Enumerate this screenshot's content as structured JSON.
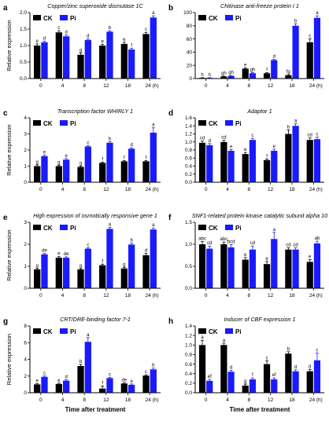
{
  "legend": {
    "ck": "CK",
    "pi": "Pi"
  },
  "colors": {
    "ck": "#000000",
    "pi": "#1a1aff"
  },
  "chart_data": [
    {
      "label": "a",
      "title": "Copper/zinc superoxide dismutase 1C",
      "type": "bar",
      "categories": [
        "0",
        "4",
        "8",
        "12",
        "18",
        "24 (h)"
      ],
      "ylabel": "Relative expression",
      "xlabel": "",
      "ylim": [
        0,
        2.0
      ],
      "yticks": [
        "0.0",
        "0.5",
        "1.0",
        "1.5",
        "2.0"
      ],
      "series": [
        {
          "name": "CK",
          "values": [
            1.0,
            1.4,
            0.72,
            1.0,
            1.05,
            1.35
          ],
          "err": [
            0.05,
            0.05,
            0.05,
            0.04,
            0.05,
            0.05
          ],
          "sig": [
            "e",
            "c",
            "g",
            "e",
            "e",
            "c"
          ]
        },
        {
          "name": "Pi",
          "values": [
            1.1,
            1.28,
            1.17,
            1.42,
            0.88,
            1.85
          ],
          "err": [
            0.03,
            0.04,
            0.03,
            0.03,
            0.04,
            0.05
          ],
          "sig": [
            "d",
            "d",
            "d",
            "b",
            "f",
            "a"
          ]
        }
      ]
    },
    {
      "label": "b",
      "title": "Chitinase anti-freeze protein I 1",
      "type": "bar",
      "categories": [
        "0",
        "4",
        "8",
        "12",
        "18",
        "24 (h)"
      ],
      "ylabel": "",
      "xlabel": "",
      "ylim": [
        0,
        100
      ],
      "yticks": [
        "0",
        "20",
        "40",
        "60",
        "80",
        "100"
      ],
      "series": [
        {
          "name": "CK",
          "values": [
            1,
            3,
            15,
            8,
            5,
            55
          ],
          "err": [
            0.3,
            0.5,
            1,
            1,
            1,
            5
          ],
          "sig": [
            "h",
            "gh",
            "e",
            "f",
            "fg",
            "c"
          ]
        },
        {
          "name": "Pi",
          "values": [
            1,
            4,
            8,
            28,
            80,
            92
          ],
          "err": [
            0.3,
            0.5,
            1,
            1,
            3,
            3
          ],
          "sig": [
            "h",
            "gh",
            "gh",
            "d",
            "b",
            "a"
          ]
        }
      ]
    },
    {
      "label": "c",
      "title": "Transcription factor WHIRLY 1",
      "type": "bar",
      "categories": [
        "0",
        "4",
        "8",
        "12",
        "18",
        "24 (h)"
      ],
      "ylabel": "Relative expression",
      "xlabel": "",
      "ylim": [
        0,
        4
      ],
      "yticks": [
        "0",
        "1",
        "2",
        "3",
        "4"
      ],
      "series": [
        {
          "name": "CK",
          "values": [
            1.0,
            1.0,
            0.95,
            1.2,
            1.3,
            1.3
          ],
          "err": [
            0.08,
            0.06,
            0.05,
            0.05,
            0.05,
            0.05
          ],
          "sig": [
            "g",
            "g",
            "g",
            "f",
            "f",
            "f"
          ]
        },
        {
          "name": "Pi",
          "values": [
            1.62,
            1.4,
            2.22,
            2.45,
            2.08,
            3.08
          ],
          "err": [
            0.06,
            0.07,
            0.05,
            0.06,
            0.06,
            0.3
          ],
          "sig": [
            "e",
            "e",
            "c",
            "b",
            "d",
            "a"
          ]
        }
      ]
    },
    {
      "label": "d",
      "title": "Adaptor 1",
      "type": "bar",
      "categories": [
        "0",
        "4",
        "8",
        "12",
        "18",
        "24 (h)"
      ],
      "ylabel": "",
      "xlabel": "",
      "ylim": [
        0,
        1.6
      ],
      "yticks": [
        "0.0",
        "0.2",
        "0.4",
        "0.6",
        "0.8",
        "1.0",
        "1.2",
        "1.4",
        "1.6"
      ],
      "series": [
        {
          "name": "CK",
          "values": [
            0.98,
            1.0,
            0.7,
            0.55,
            1.2,
            1.05
          ],
          "err": [
            0.04,
            0.04,
            0.04,
            0.03,
            0.1,
            0.05
          ],
          "sig": [
            "cd",
            "cd",
            "e",
            "f",
            "b",
            "cd"
          ]
        },
        {
          "name": "Pi",
          "values": [
            0.92,
            0.78,
            1.05,
            0.78,
            1.4,
            1.07
          ],
          "err": [
            0.04,
            0.03,
            0.04,
            0.04,
            0.05,
            0.05
          ],
          "sig": [
            "d",
            "e",
            "c",
            "e",
            "a",
            "c"
          ]
        }
      ]
    },
    {
      "label": "e",
      "title": "High expression of osmotically responsive gene 1",
      "type": "bar",
      "categories": [
        "0",
        "4",
        "8",
        "12",
        "18",
        "24 (h)"
      ],
      "ylabel": "Relative expression",
      "xlabel": "",
      "ylim": [
        0,
        3.5
      ],
      "yticks": [
        "0",
        "1",
        "2",
        "3"
      ],
      "series": [
        {
          "name": "CK",
          "values": [
            1.0,
            1.62,
            1.0,
            1.22,
            1.05,
            1.75
          ],
          "err": [
            0.05,
            0.06,
            0.05,
            0.06,
            0.06,
            0.1
          ],
          "sig": [
            "g",
            "e",
            "g",
            "f",
            "g",
            "d"
          ]
        },
        {
          "name": "Pi",
          "values": [
            1.8,
            1.62,
            2.1,
            3.15,
            2.32,
            3.12
          ],
          "err": [
            0.05,
            0.05,
            0.05,
            0.08,
            0.07,
            0.08
          ],
          "sig": [
            "de",
            "de",
            "c",
            "a",
            "b",
            "a"
          ]
        }
      ]
    },
    {
      "label": "f",
      "title": "SNF1-related protein kinase catalytic subunit alpha 10",
      "type": "bar",
      "categories": [
        "0",
        "4",
        "8",
        "12",
        "18",
        "24 (h)"
      ],
      "ylabel": "",
      "xlabel": "",
      "ylim": [
        0,
        1.5
      ],
      "yticks": [
        "0.0",
        "0.5",
        "1.0",
        "1.5"
      ],
      "series": [
        {
          "name": "CK",
          "values": [
            1.0,
            1.0,
            0.65,
            0.55,
            0.88,
            0.6
          ],
          "err": [
            0.06,
            0.05,
            0.05,
            0.06,
            0.04,
            0.05
          ],
          "sig": [
            "abc",
            "abc",
            "e",
            "e",
            "cd",
            "e"
          ]
        },
        {
          "name": "Pi",
          "values": [
            0.9,
            0.93,
            0.88,
            1.12,
            0.88,
            1.02
          ],
          "err": [
            0.06,
            0.06,
            0.08,
            0.15,
            0.04,
            0.05
          ],
          "sig": [
            "cd",
            "bcd",
            "cd",
            "a",
            "cd",
            "ab"
          ]
        }
      ]
    },
    {
      "label": "g",
      "title": "CRT/DRE-binding factor 7-1",
      "type": "bar",
      "categories": [
        "0",
        "4",
        "8",
        "12",
        "18",
        "24 (h)"
      ],
      "ylabel": "Relative expression",
      "xlabel": "Time after treatment",
      "ylim": [
        0,
        8
      ],
      "yticks": [
        "0",
        "2",
        "4",
        "6",
        "8"
      ],
      "series": [
        {
          "name": "CK",
          "values": [
            1.0,
            1.05,
            3.2,
            0.5,
            1.1,
            2.05
          ],
          "err": [
            0.1,
            0.1,
            0.2,
            0.3,
            0.1,
            0.1
          ],
          "sig": [
            "e",
            "e",
            "b",
            "f",
            "de",
            "c"
          ]
        },
        {
          "name": "Pi",
          "values": [
            1.9,
            1.45,
            6.1,
            1.75,
            0.95,
            2.8
          ],
          "err": [
            0.1,
            0.1,
            0.5,
            0.1,
            0.1,
            0.15
          ],
          "sig": [
            "c",
            "d",
            "a",
            "c",
            "e",
            "b"
          ]
        }
      ]
    },
    {
      "label": "h",
      "title": "Inducer of CBF expression 1",
      "type": "bar",
      "categories": [
        "0",
        "4",
        "8",
        "12",
        "18",
        "24 (h)"
      ],
      "ylabel": "",
      "xlabel": "Time after treatment",
      "ylim": [
        0,
        1.4
      ],
      "yticks": [
        "0.0",
        "0.2",
        "0.4",
        "0.6",
        "0.8",
        "1.0",
        "1.2",
        "1.4"
      ],
      "series": [
        {
          "name": "CK",
          "values": [
            1.0,
            1.0,
            0.15,
            0.6,
            0.82,
            0.45
          ],
          "err": [
            0.1,
            0.04,
            0.03,
            0.07,
            0.04,
            0.04
          ],
          "sig": [
            "a",
            "a",
            "g",
            "c",
            "b",
            "d"
          ]
        },
        {
          "name": "Pi",
          "values": [
            0.25,
            0.44,
            0.28,
            0.28,
            0.45,
            0.68
          ],
          "err": [
            0.03,
            0.03,
            0.03,
            0.03,
            0.03,
            0.15
          ],
          "sig": [
            "ef",
            "d",
            "f",
            "ef",
            "d",
            "c"
          ]
        }
      ]
    }
  ]
}
